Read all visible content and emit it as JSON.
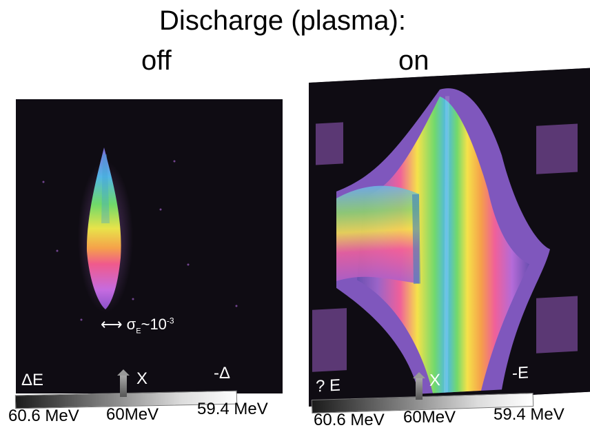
{
  "title": "Discharge (plasma):",
  "states": {
    "off": "off",
    "on": "on"
  },
  "off_panel": {
    "axis_left": "ΔE",
    "axis_center": "X",
    "axis_right": "-Δ",
    "sigma_prefix": "σ",
    "sigma_sub": "E",
    "sigma_mid": "~10",
    "sigma_exp": "-3",
    "energy_left": "60.6 MeV",
    "energy_center": "60MeV",
    "energy_right": "59.4 MeV"
  },
  "on_panel": {
    "axis_left": "? E",
    "axis_center": "X",
    "axis_right": "-E",
    "energy_left": "60.6 MeV",
    "energy_center": "60MeV",
    "energy_right": "59.4 MeV"
  }
}
